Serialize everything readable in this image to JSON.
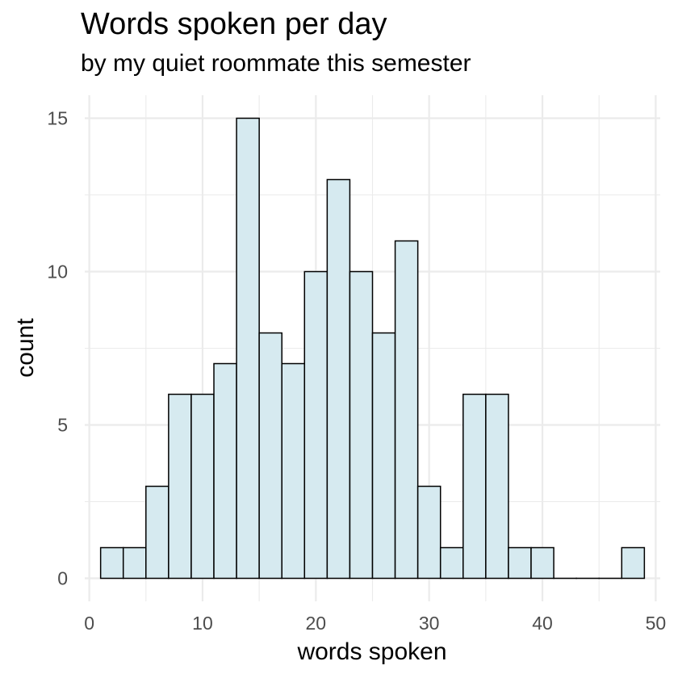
{
  "chart_data": {
    "type": "bar",
    "title": "Words spoken per day",
    "subtitle": "by my quiet roommate this semester",
    "xlabel": "words spoken",
    "ylabel": "count",
    "bin_width": 2,
    "bins": [
      {
        "start": 1,
        "end": 3,
        "count": 1
      },
      {
        "start": 3,
        "end": 5,
        "count": 1
      },
      {
        "start": 5,
        "end": 7,
        "count": 3
      },
      {
        "start": 7,
        "end": 9,
        "count": 6
      },
      {
        "start": 9,
        "end": 11,
        "count": 6
      },
      {
        "start": 11,
        "end": 13,
        "count": 7
      },
      {
        "start": 13,
        "end": 15,
        "count": 15
      },
      {
        "start": 15,
        "end": 17,
        "count": 8
      },
      {
        "start": 17,
        "end": 19,
        "count": 7
      },
      {
        "start": 19,
        "end": 21,
        "count": 10
      },
      {
        "start": 21,
        "end": 23,
        "count": 13
      },
      {
        "start": 23,
        "end": 25,
        "count": 10
      },
      {
        "start": 25,
        "end": 27,
        "count": 8
      },
      {
        "start": 27,
        "end": 29,
        "count": 11
      },
      {
        "start": 29,
        "end": 31,
        "count": 3
      },
      {
        "start": 31,
        "end": 33,
        "count": 1
      },
      {
        "start": 33,
        "end": 35,
        "count": 6
      },
      {
        "start": 35,
        "end": 37,
        "count": 6
      },
      {
        "start": 37,
        "end": 39,
        "count": 1
      },
      {
        "start": 39,
        "end": 41,
        "count": 1
      },
      {
        "start": 41,
        "end": 43,
        "count": 0
      },
      {
        "start": 43,
        "end": 45,
        "count": 0
      },
      {
        "start": 45,
        "end": 47,
        "count": 0
      },
      {
        "start": 47,
        "end": 49,
        "count": 1
      }
    ],
    "xlim": [
      -0.4,
      50.4
    ],
    "ylim": [
      -0.75,
      15.75
    ],
    "x_ticks": [
      0,
      10,
      20,
      30,
      40,
      50
    ],
    "y_ticks": [
      0,
      5,
      10,
      15
    ],
    "grid": true,
    "legend": "none",
    "colors": {
      "bar_fill": "#d6eaf0",
      "bar_stroke": "#000000",
      "grid": "#ebebeb"
    }
  }
}
